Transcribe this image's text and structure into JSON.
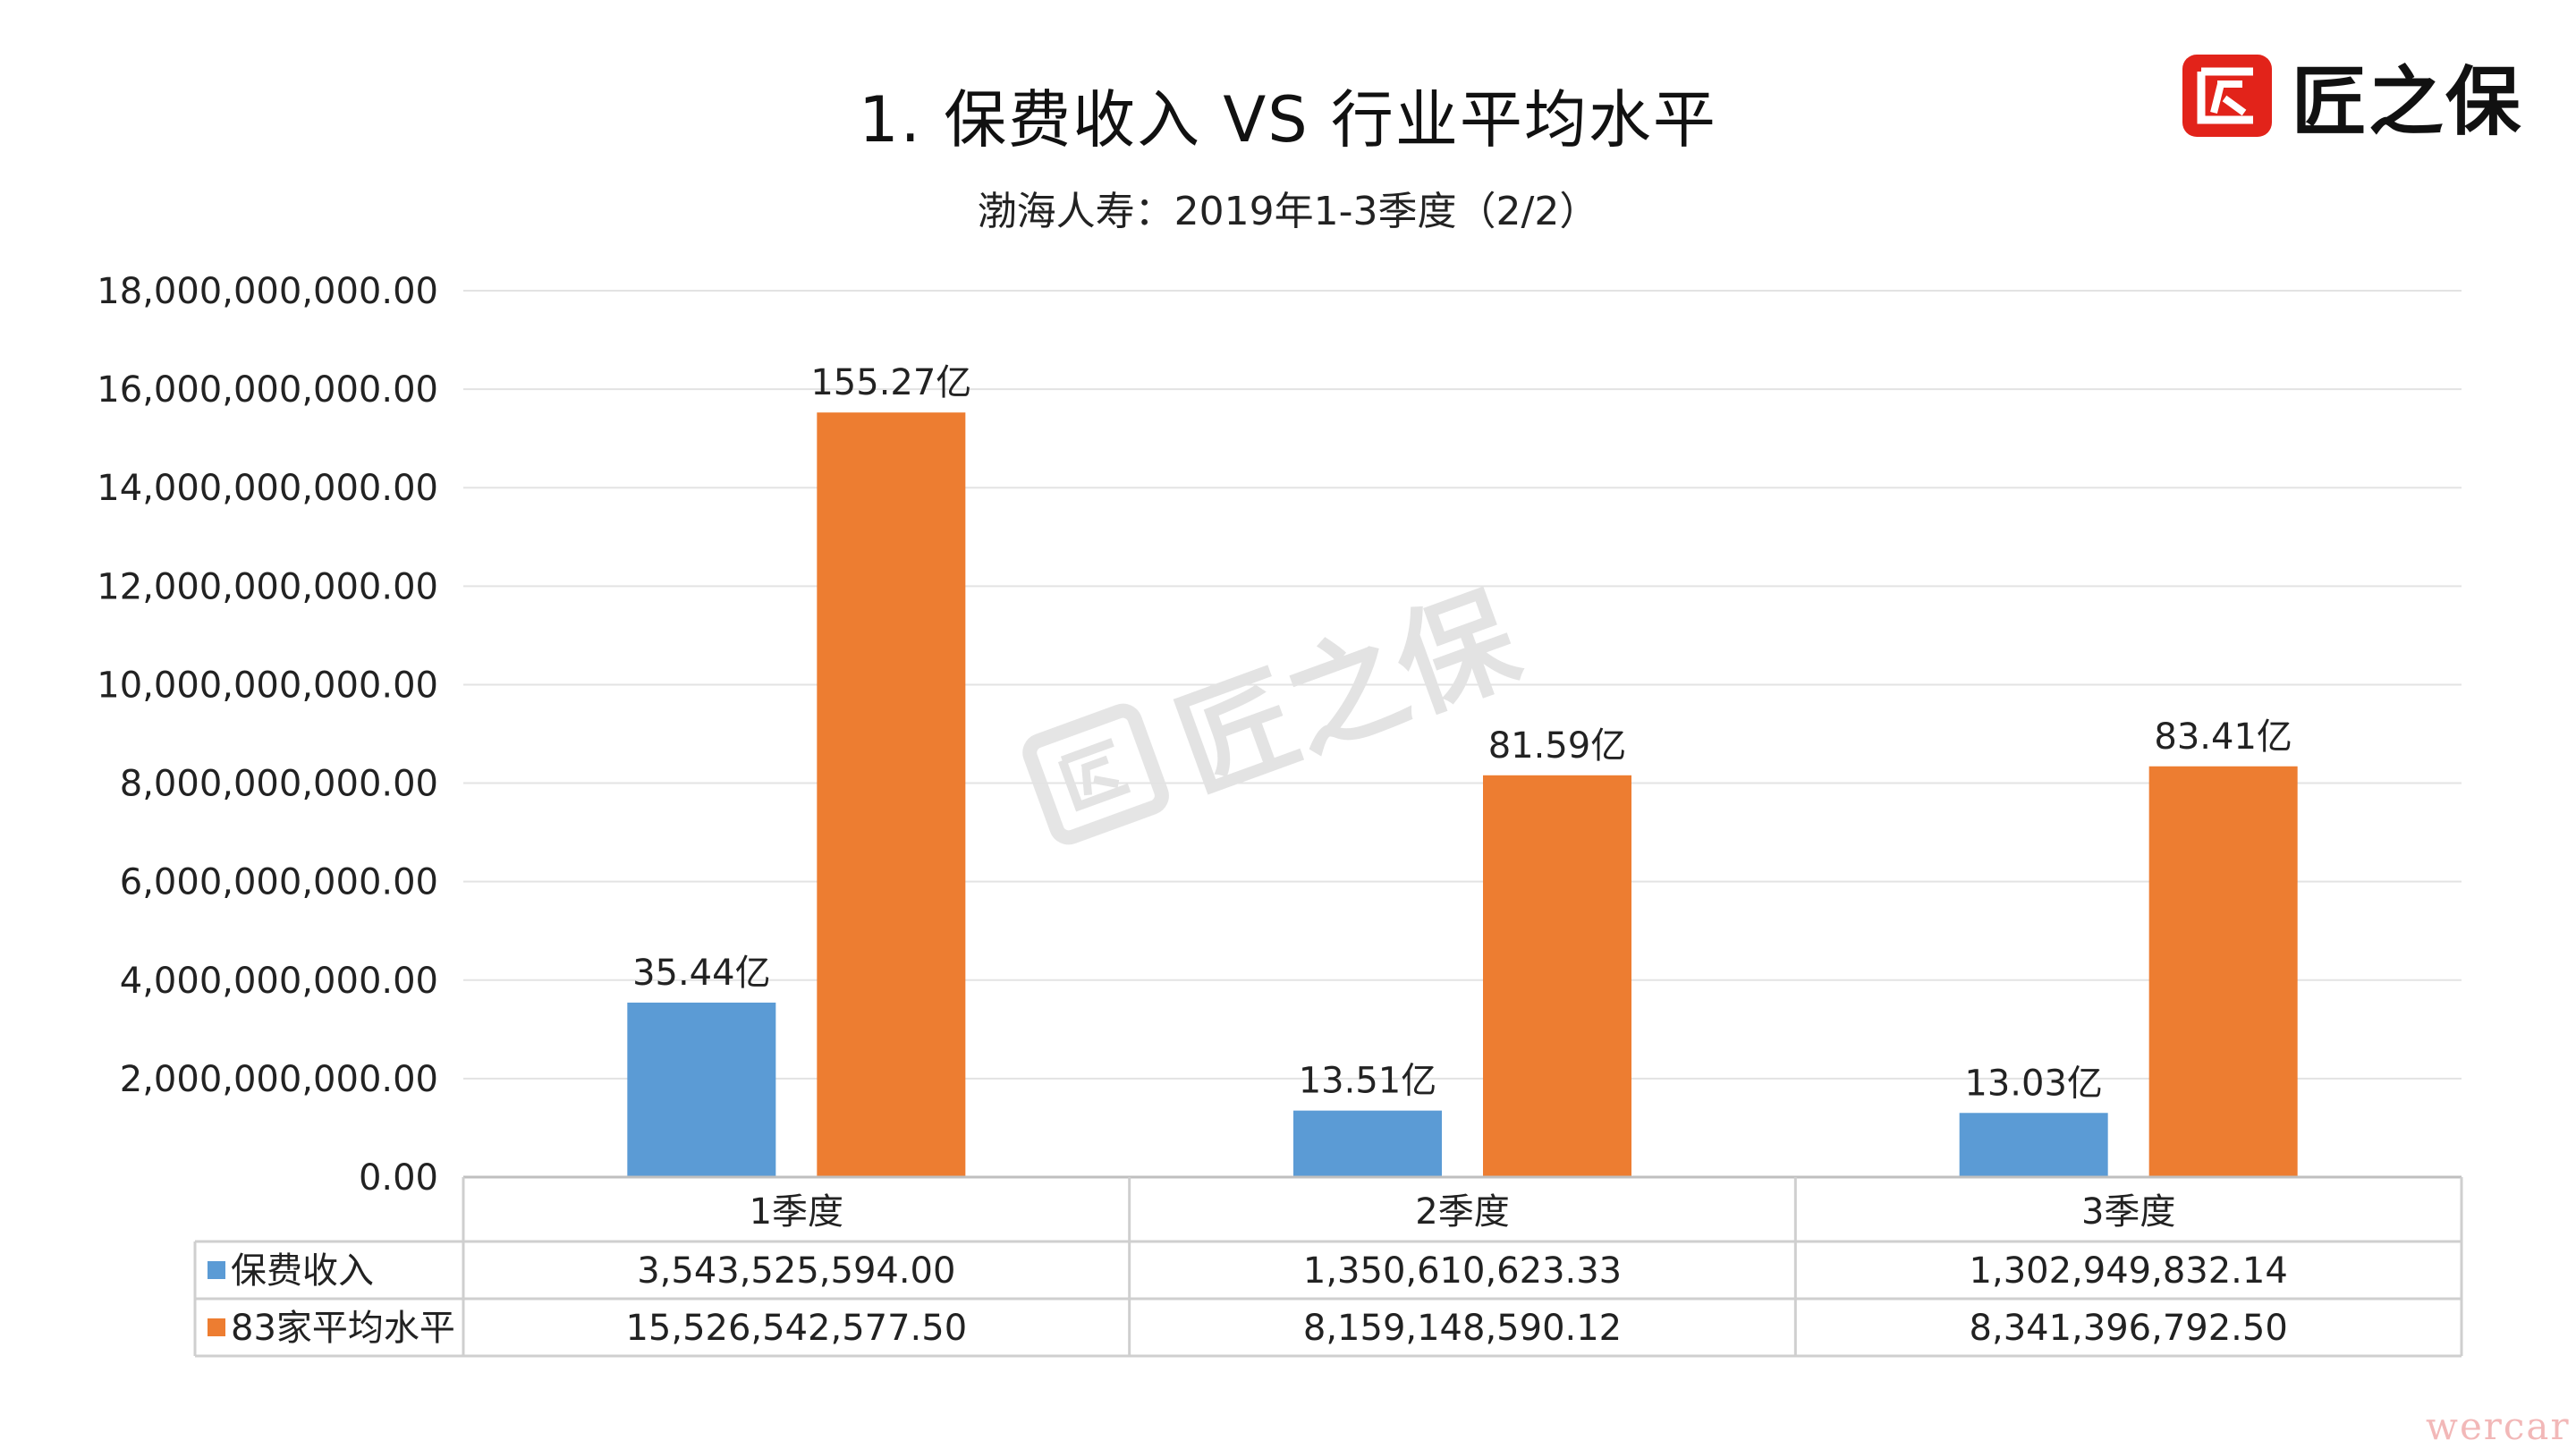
{
  "title": "1.  保费收入  VS  行业平均水平",
  "subtitle": "渤海人寿：2019年1-3季度（2/2）",
  "brand": {
    "name": "匠之保",
    "color": "#e2231a",
    "icon": "brand-logo-icon"
  },
  "watermark": "匠之保",
  "corner_mark": "wercar",
  "chart_data": {
    "type": "bar",
    "categories": [
      "1季度",
      "2季度",
      "3季度"
    ],
    "series": [
      {
        "name": "保费收入",
        "color": "#5b9bd5",
        "values": [
          3543525594.0,
          1350610623.33,
          1302949832.14
        ],
        "data_labels": [
          "35.44亿",
          "13.51亿",
          "13.03亿"
        ],
        "table_values": [
          "3,543,525,594.00",
          "1,350,610,623.33",
          "1,302,949,832.14"
        ]
      },
      {
        "name": "83家平均水平",
        "color": "#ed7d31",
        "values": [
          15526542577.5,
          8159148590.12,
          8341396792.5
        ],
        "data_labels": [
          "155.27亿",
          "81.59亿",
          "83.41亿"
        ],
        "table_values": [
          "15,526,542,577.50",
          "8,159,148,590.12",
          "8,341,396,792.50"
        ]
      }
    ],
    "yticks": [
      "0.00",
      "2,000,000,000.00",
      "4,000,000,000.00",
      "6,000,000,000.00",
      "8,000,000,000.00",
      "10,000,000,000.00",
      "12,000,000,000.00",
      "14,000,000,000.00",
      "16,000,000,000.00",
      "18,000,000,000.00"
    ],
    "ylim": [
      0,
      18000000000
    ],
    "grid": true,
    "legend": "data-table"
  }
}
